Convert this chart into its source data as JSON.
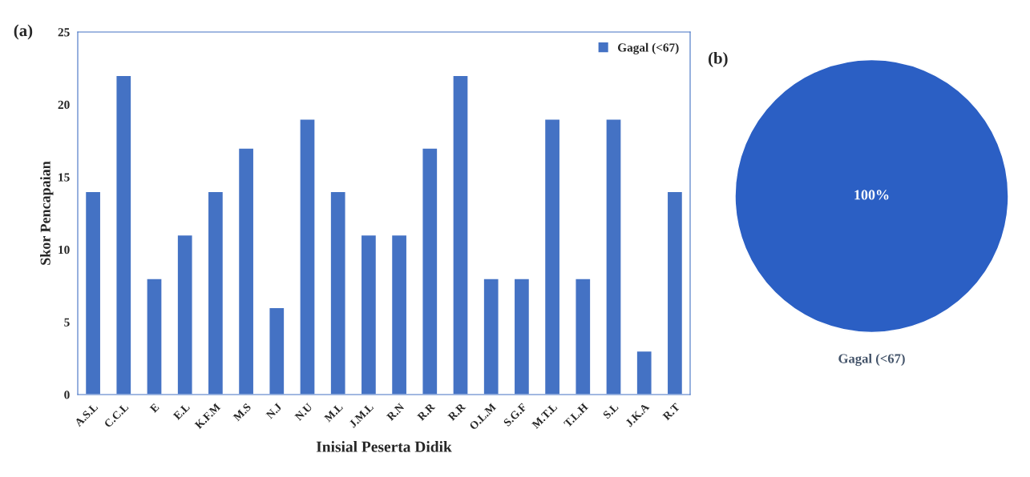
{
  "chart_data": [
    {
      "type": "bar",
      "title": "(a)",
      "xlabel": "Inisial Peserta Didik",
      "ylabel": "Skor Pencapaian",
      "categories": [
        "A.S.L",
        "C.C.L",
        "E",
        "E.L",
        "K.F.M",
        "M.S",
        "N.J",
        "N.U",
        "M.L",
        "J.M.L",
        "R.N",
        "R.R",
        "R.R",
        "O.L.M",
        "S.G.F",
        "M.T.L",
        "T.L.H",
        "S.L",
        "J.K.A",
        "R.T"
      ],
      "series": [
        {
          "name": "Gagal (<67)",
          "color": "#4472c4",
          "values": [
            14,
            22,
            8,
            11,
            14,
            17,
            6,
            19,
            14,
            11,
            11,
            17,
            22,
            8,
            8,
            19,
            8,
            19,
            3,
            14
          ]
        }
      ],
      "ylim": [
        0,
        25
      ],
      "yticks": [
        0,
        5,
        10,
        15,
        20,
        25
      ],
      "legend": "top right",
      "grid": false
    },
    {
      "type": "pie",
      "title": "(b)",
      "categories": [
        "Gagal (<67)"
      ],
      "values": [
        100
      ],
      "colors": [
        "#2b5fc4"
      ],
      "value_labels": [
        "100%"
      ]
    }
  ]
}
